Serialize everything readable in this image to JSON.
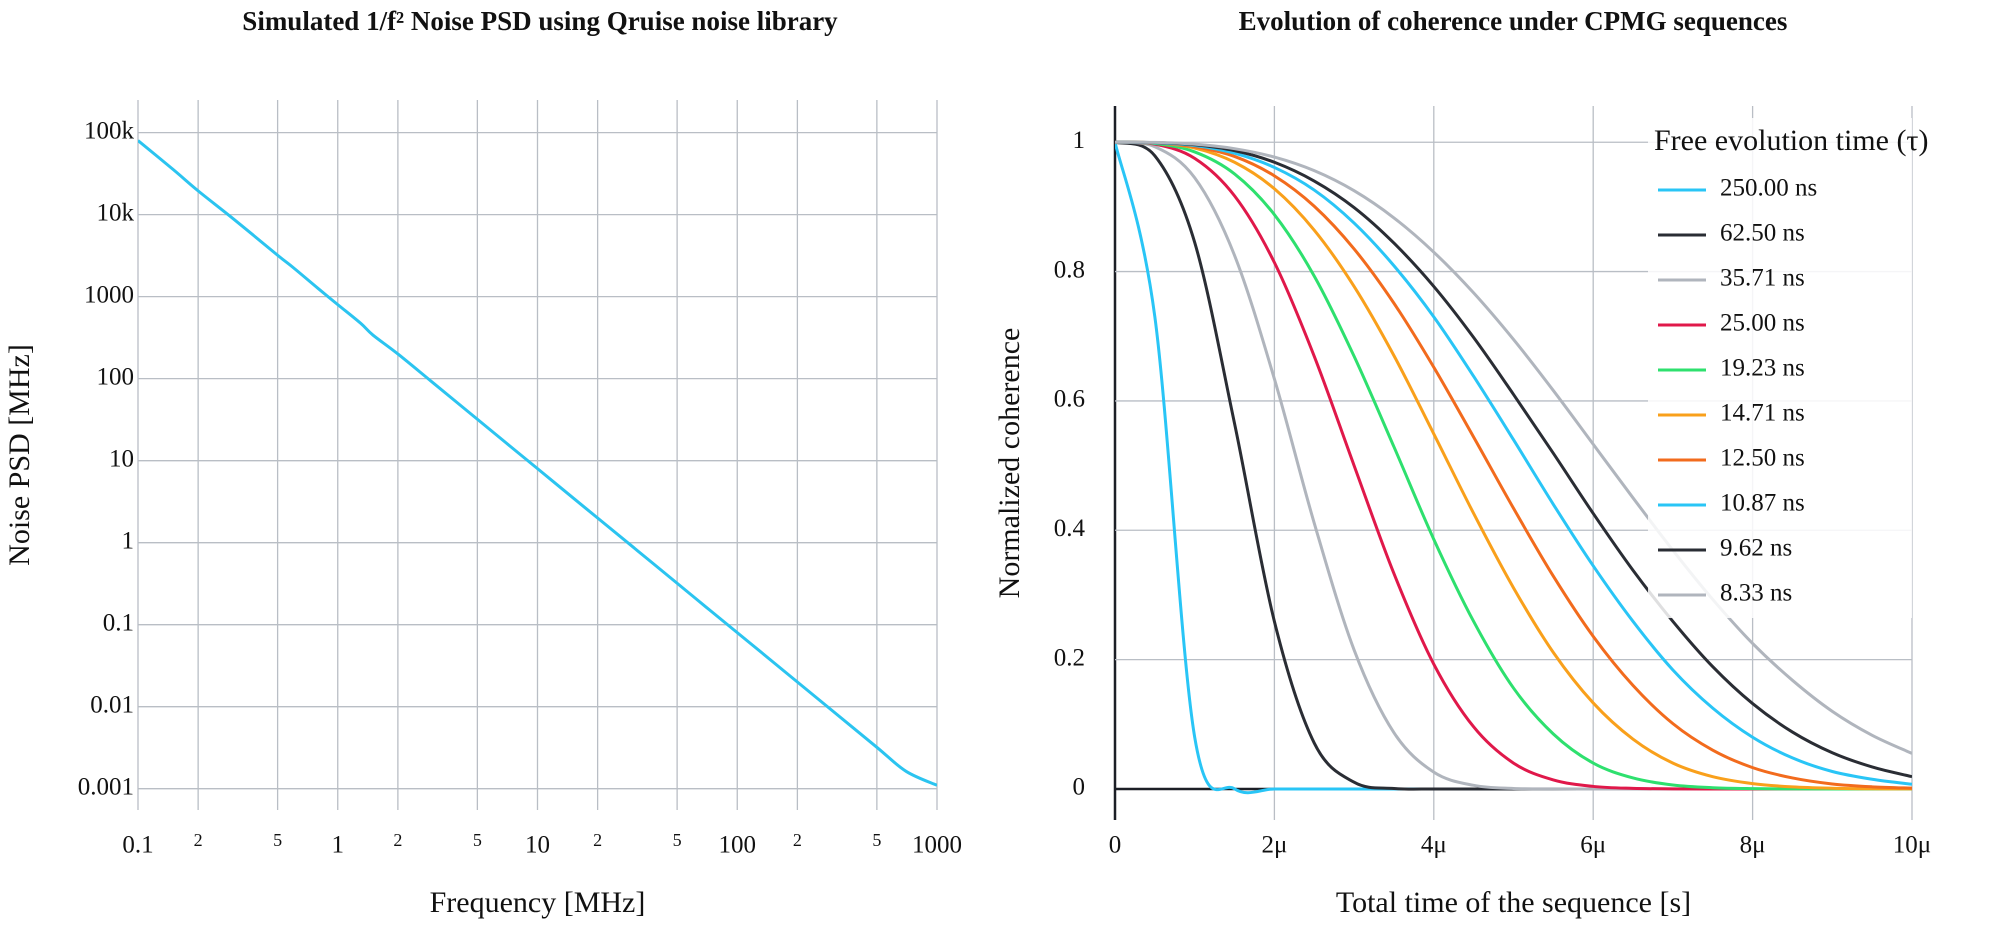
{
  "chart_data": [
    {
      "type": "line",
      "title": "Simulated 1/f² Noise PSD using Qruise noise library",
      "x_label": "Frequency [MHz]",
      "y_label": "Noise PSD [MHz]",
      "log_x": true,
      "log_y": true,
      "grid": true,
      "color": "#2bc4f0",
      "x": [
        0.1,
        0.15,
        0.2,
        0.3,
        0.5,
        0.6,
        0.8,
        1,
        1.3,
        1.5,
        2,
        3,
        5,
        7,
        10,
        15,
        20,
        30,
        50,
        70,
        100,
        150,
        200,
        300,
        500,
        700,
        1000
      ],
      "values": [
        80000,
        35500,
        19500,
        8900,
        3200,
        2250,
        1250,
        800,
        475,
        340,
        200,
        89,
        32,
        16.3,
        8,
        3.55,
        2.0,
        0.89,
        0.32,
        0.163,
        0.08,
        0.0356,
        0.02,
        0.0089,
        0.0032,
        0.00163,
        0.0011
      ],
      "xlim": [
        0.1,
        1000
      ],
      "ylim": [
        0.00055,
        250000
      ],
      "xticks": [
        0.1,
        {
          "value": 0.2,
          "label": "2"
        },
        {
          "value": 0.5,
          "label": "5"
        },
        1,
        {
          "value": 2,
          "label": "2"
        },
        {
          "value": 5,
          "label": "5"
        },
        10,
        {
          "value": 20,
          "label": "2"
        },
        {
          "value": 50,
          "label": "5"
        },
        100,
        {
          "value": 200,
          "label": "2"
        },
        {
          "value": 500,
          "label": "5"
        },
        1000
      ],
      "yticks": [
        {
          "value": 100000,
          "label": "100k"
        },
        {
          "value": 10000,
          "label": "10k"
        },
        1000,
        100,
        10,
        1,
        0.1,
        0.01,
        0.001
      ]
    },
    {
      "type": "line",
      "title": "Evolution of coherence under CPMG sequences",
      "x_label": "Total time of the sequence [s]",
      "y_label": "Normalized coherence",
      "grid": true,
      "legend": "top-right",
      "legend_title": "Free evolution time (τ)",
      "x": [
        0,
        5e-07,
        1e-06,
        1.5e-06,
        2e-06,
        2.5e-06,
        3e-06,
        3.5e-06,
        4e-06,
        4.5e-06,
        5e-06,
        5.5e-06,
        6e-06,
        6.5e-06,
        7e-06,
        7.5e-06,
        8e-06,
        8.5e-06,
        9e-06,
        9.5e-06,
        1e-05
      ],
      "series": [
        {
          "name": "250.00 ns",
          "color": "#29c5f6",
          "values": [
            1,
            0.73,
            0.08,
            0.0002,
            0,
            0,
            0,
            0,
            0,
            0,
            0,
            0,
            0,
            0,
            0,
            0,
            0,
            0,
            0,
            0,
            0
          ]
        },
        {
          "name": "62.50 ns",
          "color": "#2a2d34",
          "values": [
            1,
            0.979,
            0.845,
            0.565,
            0.259,
            0.071,
            0.0104,
            0.0007,
            0,
            0,
            0,
            0,
            0,
            0,
            0,
            0,
            0,
            0,
            0,
            0,
            0
          ]
        },
        {
          "name": "35.71 ns",
          "color": "#b0b5bd",
          "values": [
            1,
            0.993,
            0.945,
            0.825,
            0.634,
            0.411,
            0.215,
            0.087,
            0.026,
            0.0056,
            0.0008,
            0.0001,
            0,
            0,
            0,
            0,
            0,
            0,
            0,
            0,
            0
          ]
        },
        {
          "name": "25.00 ns",
          "color": "#e0184a",
          "values": [
            1,
            0.997,
            0.975,
            0.917,
            0.814,
            0.669,
            0.5,
            0.333,
            0.193,
            0.096,
            0.04,
            0.014,
            0.0039,
            0.0009,
            0.0002,
            0,
            0,
            0,
            0,
            0,
            0
          ]
        },
        {
          "name": "19.23 ns",
          "color": "#2ee06e",
          "values": [
            1,
            0.998,
            0.985,
            0.951,
            0.888,
            0.793,
            0.669,
            0.529,
            0.386,
            0.259,
            0.156,
            0.085,
            0.04,
            0.017,
            0.0061,
            0.0019,
            0.0005,
            0.0001,
            0,
            0,
            0
          ]
        },
        {
          "name": "14.71 ns",
          "color": "#f9a01b",
          "values": [
            1,
            0.999,
            0.991,
            0.969,
            0.928,
            0.864,
            0.777,
            0.67,
            0.549,
            0.426,
            0.311,
            0.211,
            0.133,
            0.077,
            0.04,
            0.019,
            0.0083,
            0.0032,
            0.0011,
            0.0003,
            0.0001
          ]
        },
        {
          "name": "12.50 ns",
          "color": "#f26b1d",
          "values": [
            1,
            0.999,
            0.993,
            0.978,
            0.948,
            0.901,
            0.835,
            0.751,
            0.652,
            0.544,
            0.434,
            0.329,
            0.236,
            0.16,
            0.101,
            0.06,
            0.033,
            0.017,
            0.0077,
            0.0033,
            0.0013
          ]
        },
        {
          "name": "10.87 ns",
          "color": "#29c5f6",
          "values": [
            1,
            0.999,
            0.995,
            0.983,
            0.961,
            0.926,
            0.875,
            0.809,
            0.73,
            0.638,
            0.54,
            0.44,
            0.345,
            0.259,
            0.184,
            0.125,
            0.08,
            0.048,
            0.027,
            0.015,
            0.0072
          ]
        },
        {
          "name": "9.62 ns",
          "color": "#2a2d34",
          "values": [
            1,
            0.9995,
            0.996,
            0.987,
            0.969,
            0.94,
            0.899,
            0.844,
            0.777,
            0.698,
            0.61,
            0.519,
            0.426,
            0.338,
            0.259,
            0.189,
            0.132,
            0.088,
            0.056,
            0.034,
            0.019
          ]
        },
        {
          "name": "8.33 ns",
          "color": "#b0b5bd",
          "values": [
            1,
            0.9997,
            0.997,
            0.99,
            0.977,
            0.956,
            0.925,
            0.883,
            0.83,
            0.767,
            0.695,
            0.616,
            0.533,
            0.45,
            0.369,
            0.293,
            0.225,
            0.168,
            0.12,
            0.083,
            0.055
          ]
        }
      ],
      "xlim": [
        0,
        1e-05
      ],
      "ylim": [
        -0.048,
        1.056
      ],
      "xticks": [
        0,
        {
          "value": 2e-06,
          "label": "2μ"
        },
        {
          "value": 4e-06,
          "label": "4μ"
        },
        {
          "value": 6e-06,
          "label": "6μ"
        },
        {
          "value": 8e-06,
          "label": "8μ"
        },
        {
          "value": 1e-05,
          "label": "10μ"
        }
      ],
      "yticks": [
        0,
        0.2,
        0.4,
        0.6,
        0.8,
        1
      ]
    }
  ]
}
